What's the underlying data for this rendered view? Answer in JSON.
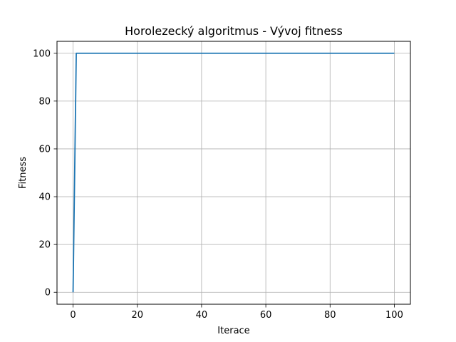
{
  "chart_data": {
    "type": "line",
    "title": "Horolezecký algoritmus - Vývoj fitness",
    "xlabel": "Iterace",
    "ylabel": "Fitness",
    "xlim": [
      -5,
      105
    ],
    "ylim": [
      -5,
      105
    ],
    "xticks": [
      0,
      20,
      40,
      60,
      80,
      100
    ],
    "yticks": [
      0,
      20,
      40,
      60,
      80,
      100
    ],
    "grid": true,
    "series": [
      {
        "color": "#1f77b4",
        "x": [
          0,
          1,
          100
        ],
        "y": [
          0,
          100,
          100
        ]
      }
    ]
  }
}
